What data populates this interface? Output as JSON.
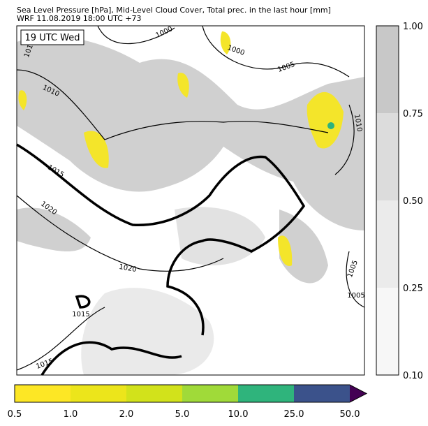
{
  "header": {
    "title_line1": "Sea Level Pressure [hPa], Mid-Level Cloud Cover, Total prec. in the last hour [mm]",
    "title_line2": "WRF 11.08.2019 18:00 UTC +73"
  },
  "map": {
    "time_label": "19 UTC Wed",
    "contour_labels": [
      "1010",
      "1000",
      "1000",
      "1005",
      "1010",
      "1010",
      "1015",
      "1020",
      "1020",
      "1015",
      "1015",
      "1005",
      "1005"
    ]
  },
  "cloud_colorbar": {
    "ticks": [
      "1.00",
      "0.75",
      "0.50",
      "0.25",
      "0.10"
    ]
  },
  "precip_colorbar": {
    "ticks": [
      "0.5",
      "1.0",
      "2.0",
      "5.0",
      "10.0",
      "25.0",
      "50.0"
    ]
  }
}
